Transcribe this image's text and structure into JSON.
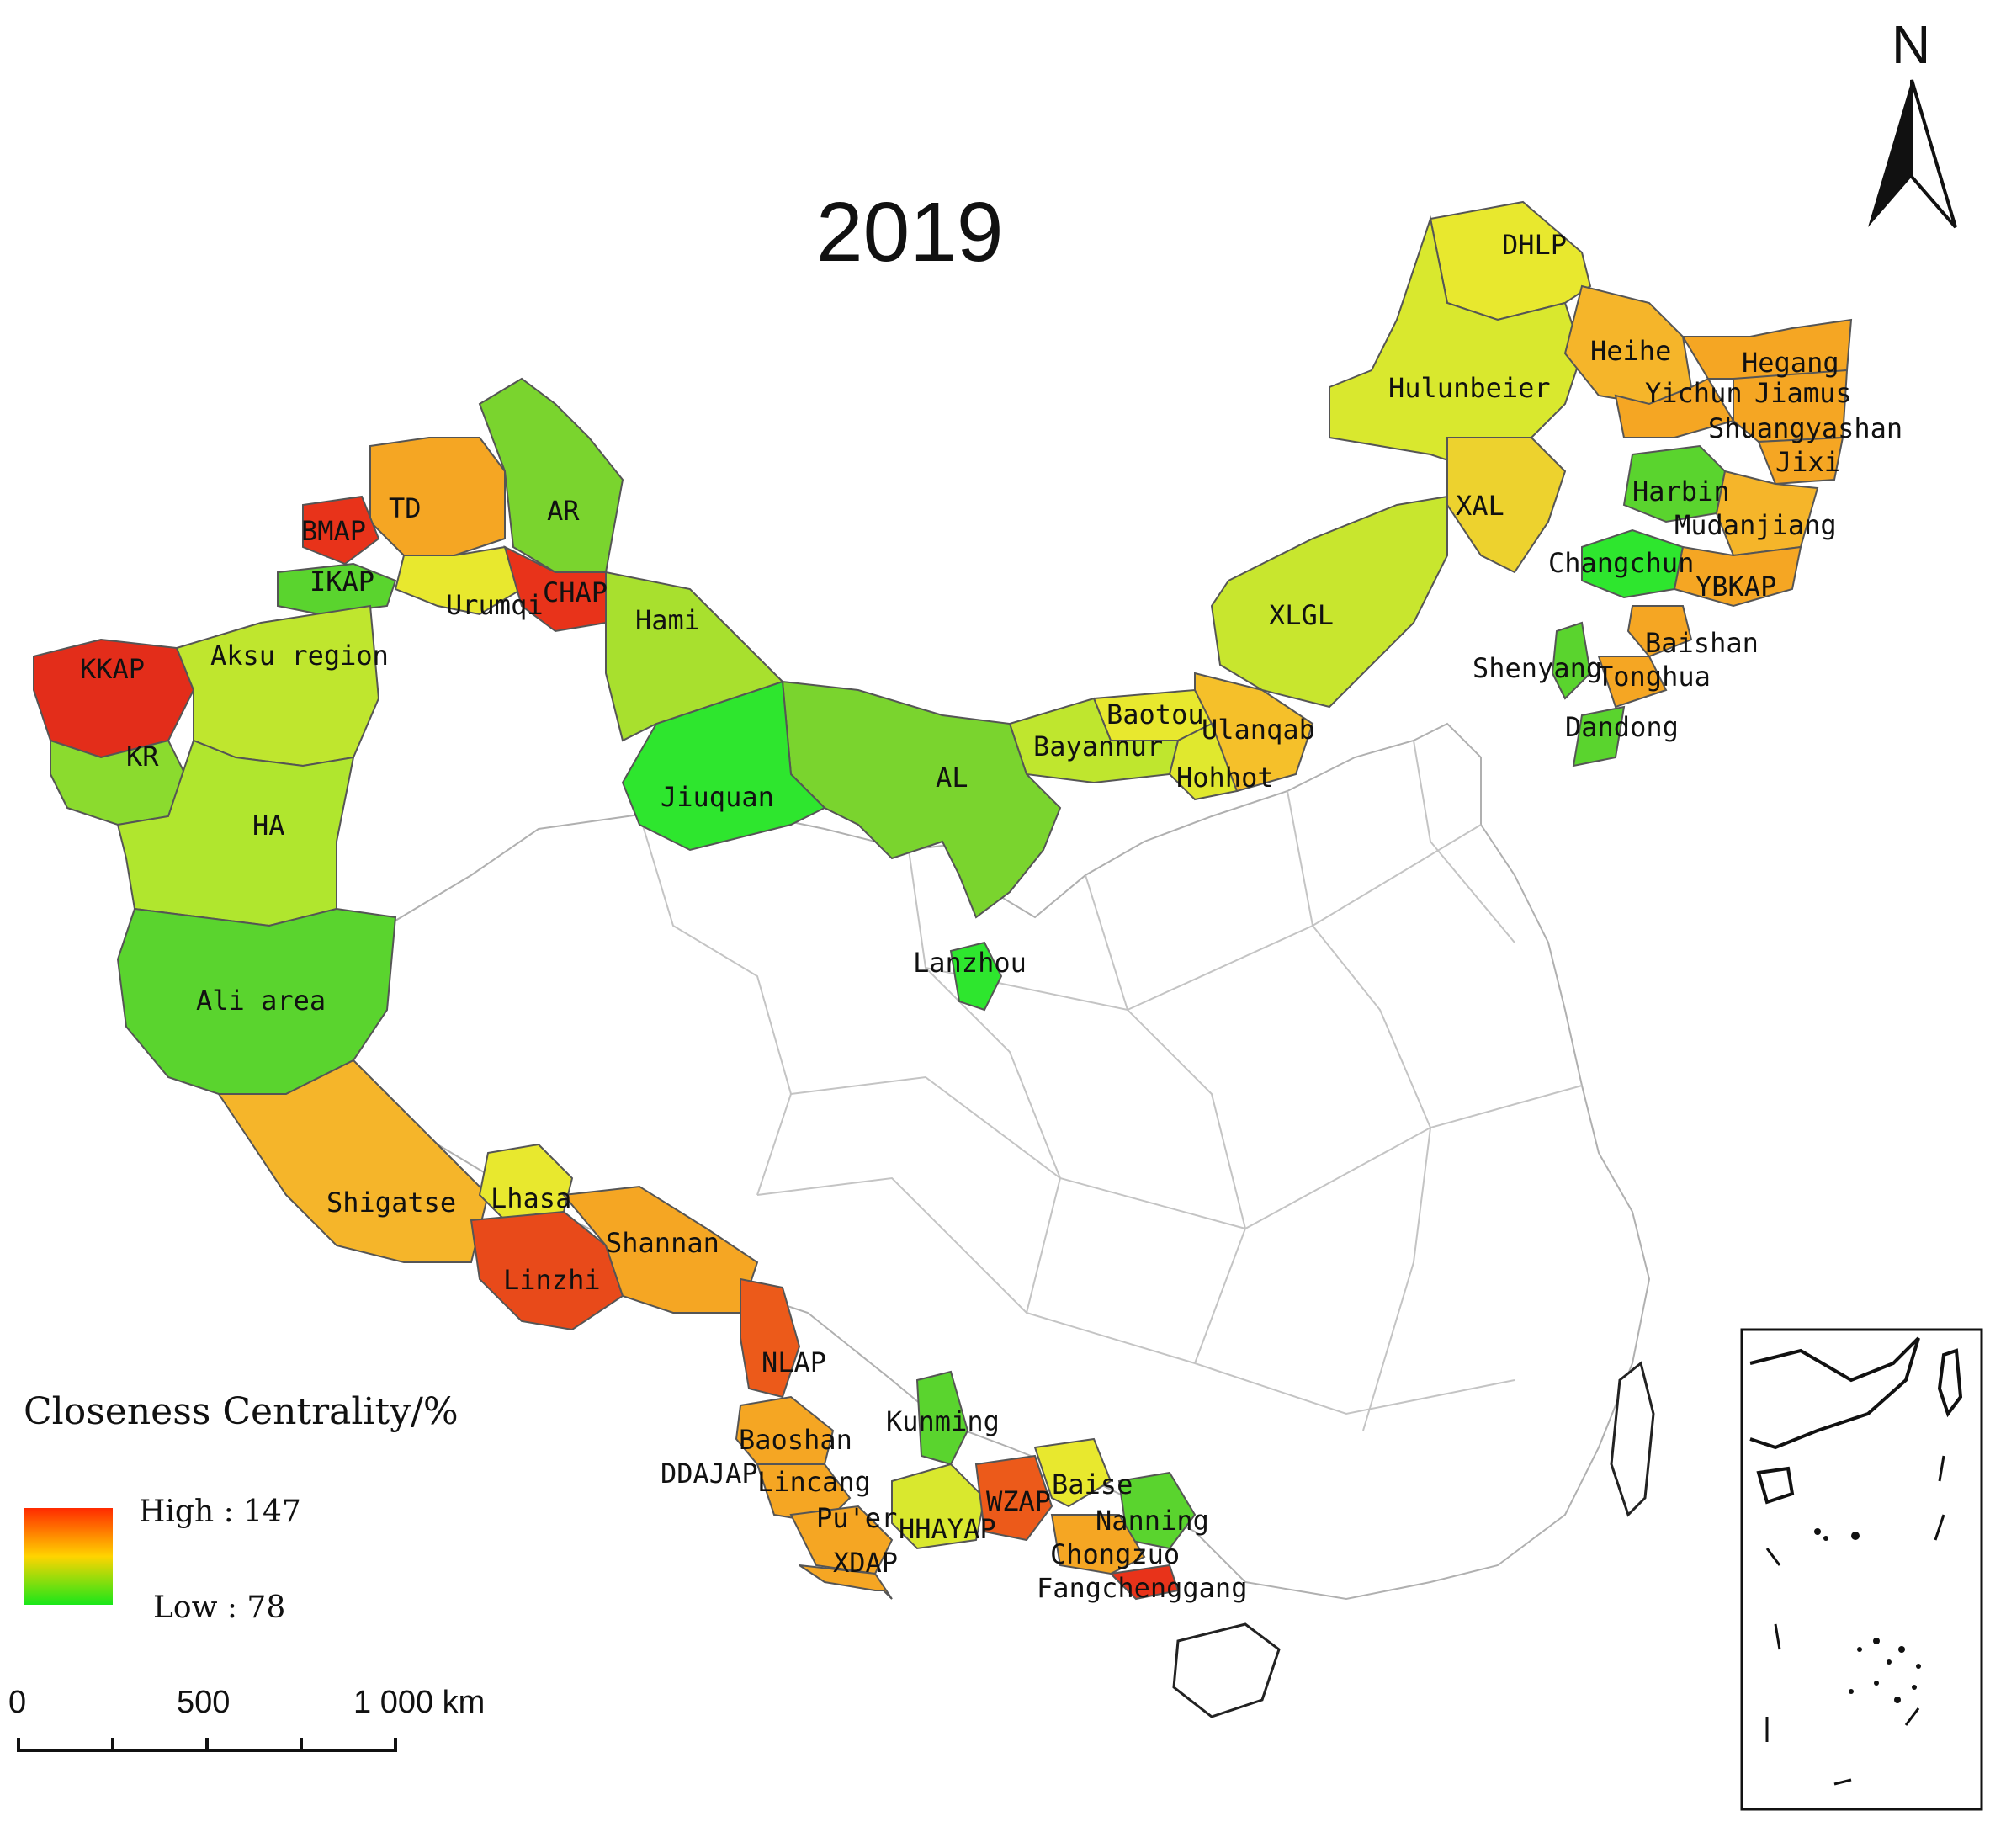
{
  "title": "2019",
  "north_label": "N",
  "legend": {
    "title": "Closeness Centrality/%",
    "high_label": "High : 147",
    "low_label": "Low : 78",
    "high_color": "#ff2a00",
    "mid_color": "#ffd400",
    "low_color": "#19e619"
  },
  "scale_bar": {
    "labels": [
      "0",
      "500",
      "1 000 km"
    ]
  },
  "colors": {
    "red": "#e8331a",
    "orange": "#f5a623",
    "yellow": "#e8e82e",
    "yellowgreen": "#b8e62e",
    "green": "#5ad42e",
    "brightgreen": "#2ee62e"
  },
  "regions": [
    {
      "name": "DHLP",
      "color": "yellow"
    },
    {
      "name": "Heihe",
      "color": "orange"
    },
    {
      "name": "Hegang",
      "color": "orange"
    },
    {
      "name": "Yichun",
      "color": "orange"
    },
    {
      "name": "Jiamus",
      "color": "orange"
    },
    {
      "name": "Shuangyashan",
      "color": "orange"
    },
    {
      "name": "Jixi",
      "color": "orange"
    },
    {
      "name": "Hulunbeier",
      "color": "yellow"
    },
    {
      "name": "Harbin",
      "color": "green"
    },
    {
      "name": "Mudanjiang",
      "color": "orange"
    },
    {
      "name": "XAL",
      "color": "yellow"
    },
    {
      "name": "Changchun",
      "color": "brightgreen"
    },
    {
      "name": "YBKAP",
      "color": "orange"
    },
    {
      "name": "Baishan",
      "color": "orange"
    },
    {
      "name": "Shenyang",
      "color": "green"
    },
    {
      "name": "Tonghua",
      "color": "orange"
    },
    {
      "name": "Dandong",
      "color": "green"
    },
    {
      "name": "XLGL",
      "color": "yellowgreen"
    },
    {
      "name": "Baotou",
      "color": "yellow"
    },
    {
      "name": "Ulanqab",
      "color": "orange"
    },
    {
      "name": "Bayannur",
      "color": "yellowgreen"
    },
    {
      "name": "Hohhot",
      "color": "yellow"
    },
    {
      "name": "AL",
      "color": "green"
    },
    {
      "name": "Jiuquan",
      "color": "brightgreen"
    },
    {
      "name": "Hami",
      "color": "yellowgreen"
    },
    {
      "name": "Lanzhou",
      "color": "brightgreen"
    },
    {
      "name": "AR",
      "color": "green"
    },
    {
      "name": "TD",
      "color": "orange"
    },
    {
      "name": "BMAP",
      "color": "red"
    },
    {
      "name": "IKAP",
      "color": "green"
    },
    {
      "name": "Urumqi",
      "color": "yellow"
    },
    {
      "name": "CHAP",
      "color": "red"
    },
    {
      "name": "KKAP",
      "color": "red"
    },
    {
      "name": "Aksu region",
      "color": "yellowgreen"
    },
    {
      "name": "KR",
      "color": "green"
    },
    {
      "name": "HA",
      "color": "yellowgreen"
    },
    {
      "name": "Ali area",
      "color": "brightgreen"
    },
    {
      "name": "Shigatse",
      "color": "orange"
    },
    {
      "name": "Lhasa",
      "color": "yellow"
    },
    {
      "name": "Linzhi",
      "color": "orange"
    },
    {
      "name": "Shannan",
      "color": "red"
    },
    {
      "name": "NLAP",
      "color": "red"
    },
    {
      "name": "Kunming",
      "color": "green"
    },
    {
      "name": "Baoshan",
      "color": "orange"
    },
    {
      "name": "DDAJAP",
      "color": "orange"
    },
    {
      "name": "Lincang",
      "color": "orange"
    },
    {
      "name": "Pu'er",
      "color": "orange"
    },
    {
      "name": "XDAP",
      "color": "orange"
    },
    {
      "name": "HHAYAP",
      "color": "yellow"
    },
    {
      "name": "WZAP",
      "color": "red"
    },
    {
      "name": "Baise",
      "color": "yellow"
    },
    {
      "name": "Nanning",
      "color": "green"
    },
    {
      "name": "Chongzuo",
      "color": "orange"
    },
    {
      "name": "Fangchenggang",
      "color": "red"
    }
  ]
}
